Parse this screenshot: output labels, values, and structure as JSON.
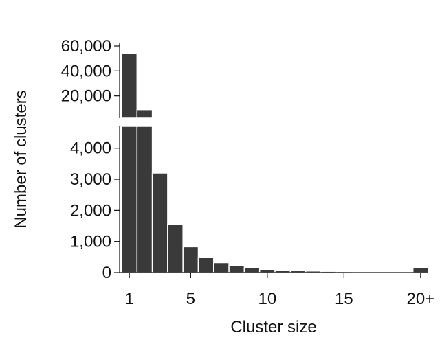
{
  "chart_data": {
    "type": "bar",
    "title": "",
    "xlabel": "Cluster size",
    "ylabel": "Number of clusters",
    "grid": false,
    "broken_y_axis": true,
    "x_tick_labels": [
      "1",
      "5",
      "10",
      "15",
      "20+"
    ],
    "x_tick_positions": [
      1,
      5,
      10,
      15,
      20
    ],
    "categories": [
      "1",
      "2",
      "3",
      "4",
      "5",
      "6",
      "7",
      "8",
      "9",
      "10",
      "11",
      "12",
      "13",
      "14",
      "15",
      "16",
      "17",
      "18",
      "19",
      "20+"
    ],
    "values": [
      54000,
      9000,
      3200,
      1550,
      830,
      480,
      320,
      220,
      150,
      105,
      80,
      60,
      50,
      40,
      35,
      30,
      25,
      22,
      20,
      150
    ],
    "lower_panel": {
      "ylim": [
        0,
        4700
      ],
      "tick_values": [
        0,
        1000,
        2000,
        3000,
        4000
      ],
      "tick_labels": [
        "0",
        "1,000",
        "2,000",
        "3,000",
        "4,000"
      ]
    },
    "upper_panel": {
      "ylim": [
        0,
        60000
      ],
      "tick_values": [
        20000,
        40000,
        60000
      ],
      "tick_labels": [
        "20,000",
        "40,000",
        "60,000"
      ]
    }
  }
}
